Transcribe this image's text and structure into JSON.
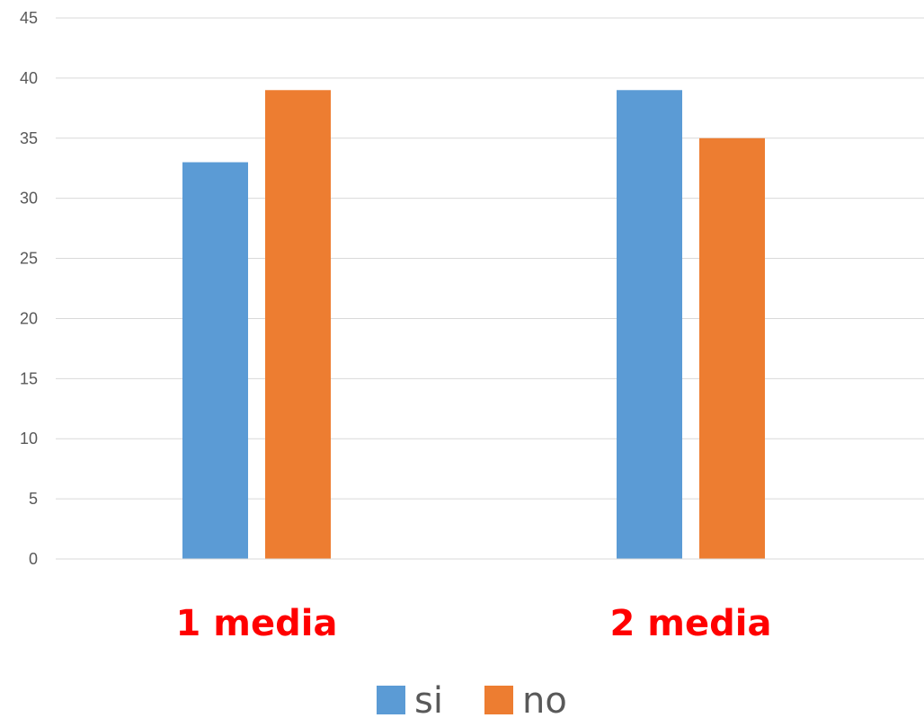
{
  "chart_data": {
    "type": "bar",
    "categories": [
      "1 media",
      "2 media"
    ],
    "series": [
      {
        "name": "si",
        "values": [
          33,
          39
        ],
        "color": "#5B9BD5"
      },
      {
        "name": "no",
        "values": [
          39,
          35
        ],
        "color": "#ED7D31"
      }
    ],
    "ylim": [
      0,
      45
    ],
    "ytick_step": 5,
    "y_ticks": [
      "0",
      "5",
      "10",
      "15",
      "20",
      "25",
      "30",
      "35",
      "40",
      "45"
    ],
    "grid": true,
    "legend": "bottom",
    "category_label_color": "#FF0000",
    "title": "",
    "xlabel": "",
    "ylabel": ""
  }
}
